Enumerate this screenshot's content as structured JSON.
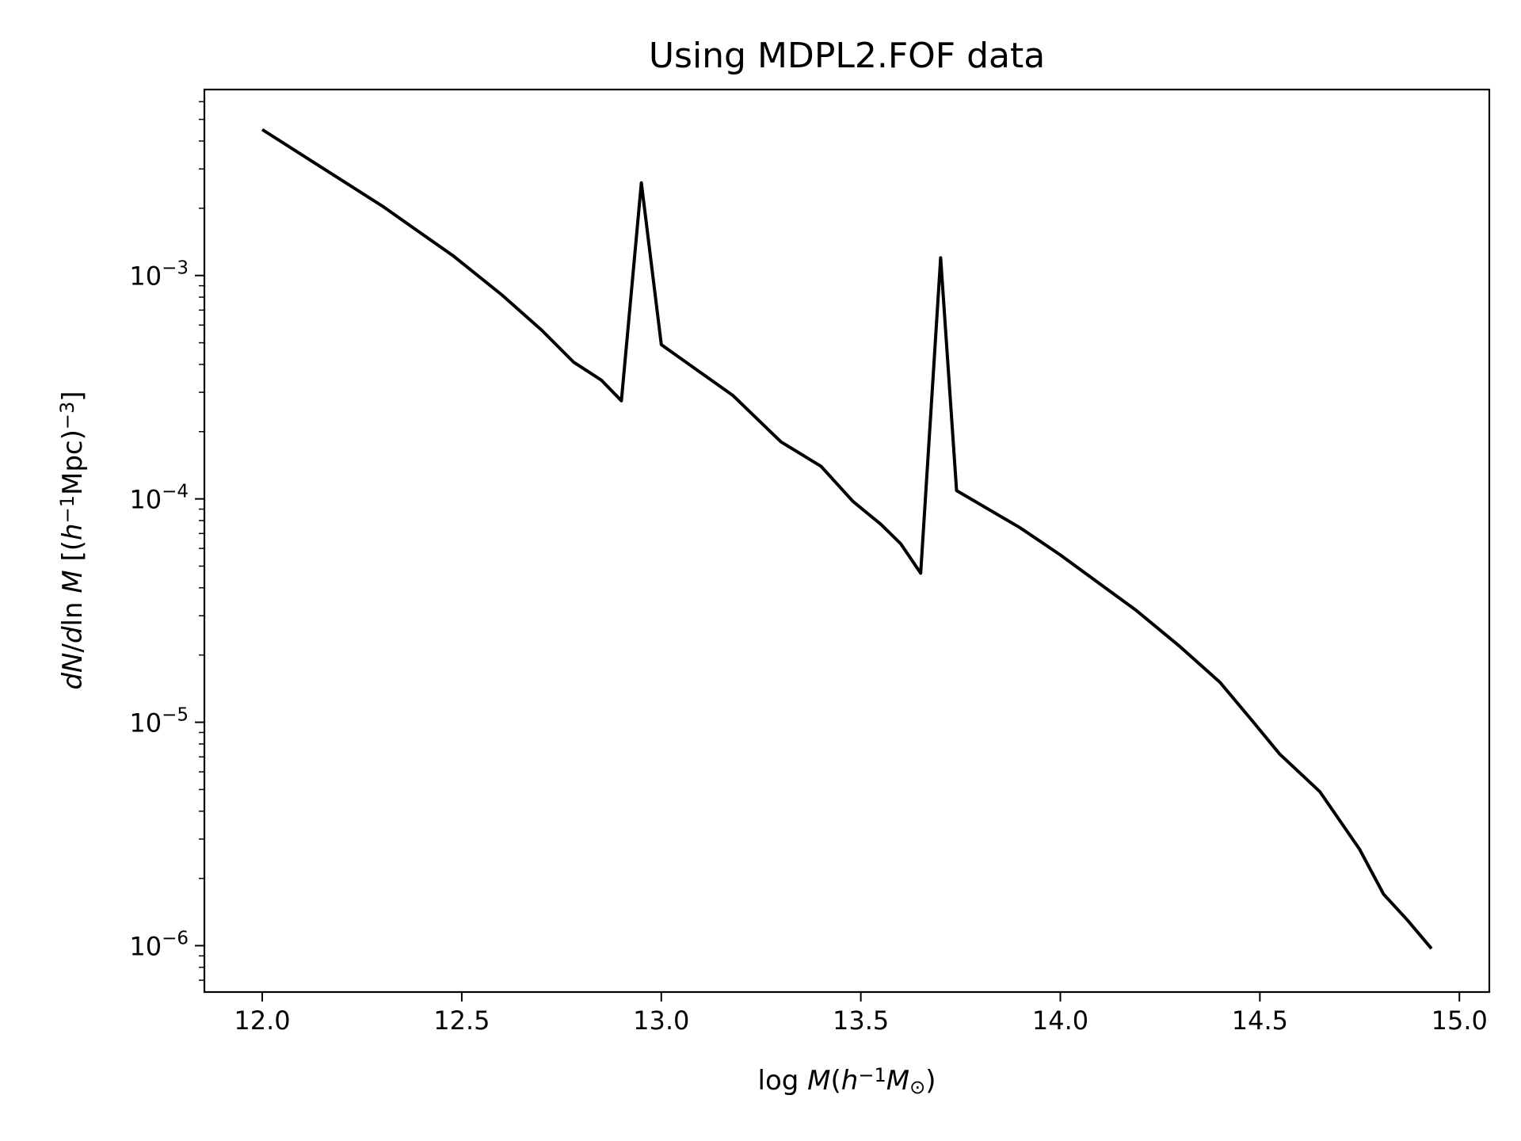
{
  "chart_data": {
    "type": "line",
    "title": "Using MDPL2.FOF data",
    "xlabel": {
      "parts": [
        {
          "t": "log ",
          "s": "n"
        },
        {
          "t": "M",
          "s": "i"
        },
        {
          "t": "(",
          "s": "n"
        },
        {
          "t": "h",
          "s": "i"
        },
        {
          "t": "−1",
          "s": "sup"
        },
        {
          "t": "M",
          "s": "i"
        },
        {
          "t": "⊙",
          "s": "sub"
        },
        {
          "t": ")",
          "s": "n"
        }
      ]
    },
    "ylabel": {
      "parts": [
        {
          "t": "dN",
          "s": "i"
        },
        {
          "t": "/",
          "s": "n"
        },
        {
          "t": "d",
          "s": "i"
        },
        {
          "t": "ln ",
          "s": "n"
        },
        {
          "t": "M",
          "s": "i"
        },
        {
          "t": " [(",
          "s": "n"
        },
        {
          "t": "h",
          "s": "i"
        },
        {
          "t": "−1",
          "s": "sup"
        },
        {
          "t": "Mpc)",
          "s": "n"
        },
        {
          "t": "−3",
          "s": "sup"
        },
        {
          "t": "]",
          "s": "n"
        }
      ]
    },
    "xlim": [
      11.855,
      15.075
    ],
    "ylim": [
      6.2e-07,
      0.0068
    ],
    "yscale": "log",
    "grid": false,
    "x_ticks": [
      {
        "v": 12.0,
        "label": "12.0"
      },
      {
        "v": 12.5,
        "label": "12.5"
      },
      {
        "v": 13.0,
        "label": "13.0"
      },
      {
        "v": 13.5,
        "label": "13.5"
      },
      {
        "v": 14.0,
        "label": "14.0"
      },
      {
        "v": 14.5,
        "label": "14.5"
      },
      {
        "v": 15.0,
        "label": "15.0"
      }
    ],
    "y_ticks": [
      {
        "v": 0.001,
        "base": "10",
        "exp": "−3"
      },
      {
        "v": 0.0001,
        "base": "10",
        "exp": "−4"
      },
      {
        "v": 1e-05,
        "base": "10",
        "exp": "−5"
      },
      {
        "v": 1e-06,
        "base": "10",
        "exp": "−6"
      }
    ],
    "series": [
      {
        "color": "#000000",
        "x": [
          12.0,
          12.3,
          12.48,
          12.6,
          12.7,
          12.78,
          12.85,
          12.9,
          12.95,
          13.0,
          13.18,
          13.3,
          13.4,
          13.48,
          13.55,
          13.6,
          13.65,
          13.7,
          13.74,
          13.9,
          14.0,
          14.19,
          14.3,
          14.4,
          14.48,
          14.55,
          14.65,
          14.75,
          14.81,
          14.87,
          14.93
        ],
        "y": [
          0.0045,
          0.00205,
          0.00122,
          0.00082,
          0.00057,
          0.00041,
          0.00034,
          0.000275,
          0.0026,
          0.00049,
          0.00029,
          0.00018,
          0.00014,
          9.75e-05,
          7.7e-05,
          6.3e-05,
          4.65e-05,
          0.0012,
          0.000109,
          7.41e-05,
          5.61e-05,
          3.17e-05,
          2.18e-05,
          1.51e-05,
          1.02e-05,
          7.2e-06,
          4.9e-06,
          2.7e-06,
          1.7e-06,
          1.3e-06,
          9.7e-07
        ]
      }
    ]
  }
}
